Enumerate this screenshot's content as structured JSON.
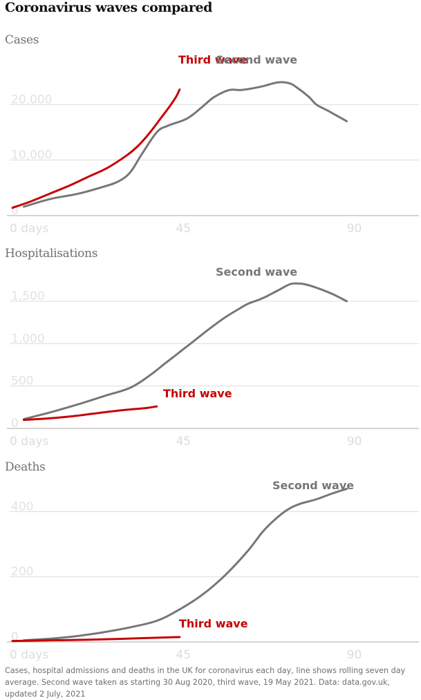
{
  "title": "Coronavirus waves compared",
  "footnote": "Cases, hospital admissions and deaths in the UK for coronavirus each day, line shows rolling seven day average. Second wave taken as starting 30 Aug 2020, third wave, 19 May 2021. Data: data.gov.uk, updated 2 July, 2021",
  "colors": {
    "second_wave": "#767676",
    "third_wave": "#c70000",
    "grid": "#dcdcdc",
    "axis": "#aaaaaa"
  },
  "chart_data": [
    {
      "type": "line",
      "title": "Cases",
      "xlabel": "",
      "ylabel": "",
      "xlim": [
        0,
        105
      ],
      "ylim": [
        0,
        27000
      ],
      "x_ticks": [
        {
          "v": 0,
          "label": "0 days"
        },
        {
          "v": 45,
          "label": "45"
        },
        {
          "v": 90,
          "label": "90"
        }
      ],
      "y_ticks": [
        {
          "v": 0,
          "label": "0"
        },
        {
          "v": 10000,
          "label": "10,000"
        },
        {
          "v": 20000,
          "label": "20,000"
        }
      ],
      "grid": true,
      "series": [
        {
          "name": "Second wave",
          "color": "#767676",
          "x": [
            3,
            10,
            17,
            24,
            28,
            31,
            34,
            38,
            41,
            46,
            50,
            53,
            57,
            60,
            63,
            66,
            70,
            73,
            75,
            78,
            80,
            83,
            88
          ],
          "y": [
            1600,
            3000,
            3900,
            5200,
            6200,
            7800,
            11000,
            15000,
            16200,
            17500,
            19600,
            21300,
            22600,
            22600,
            22900,
            23300,
            24000,
            23800,
            23000,
            21400,
            20000,
            18900,
            17000
          ]
        },
        {
          "name": "Third wave",
          "color": "#c70000",
          "x": [
            0,
            5,
            10,
            15,
            20,
            25,
            30,
            33,
            36,
            39,
            41,
            43,
            44
          ],
          "y": [
            1400,
            2600,
            4000,
            5400,
            7000,
            8600,
            10800,
            12500,
            14800,
            17500,
            19300,
            21300,
            22700
          ]
        }
      ]
    },
    {
      "type": "line",
      "title": "Hospitalisations",
      "xlabel": "",
      "ylabel": "",
      "xlim": [
        0,
        105
      ],
      "ylim": [
        0,
        1850
      ],
      "x_ticks": [
        {
          "v": 0,
          "label": "0 days"
        },
        {
          "v": 45,
          "label": "45"
        },
        {
          "v": 90,
          "label": "90"
        }
      ],
      "y_ticks": [
        {
          "v": 0,
          "label": "0"
        },
        {
          "v": 500,
          "label": "500"
        },
        {
          "v": 1000,
          "label": "1,000"
        },
        {
          "v": 1500,
          "label": "1,500"
        }
      ],
      "grid": true,
      "series": [
        {
          "name": "Second wave",
          "color": "#767676",
          "x": [
            3,
            10,
            17,
            24,
            31,
            36,
            40,
            44,
            48,
            52,
            56,
            60,
            62,
            65,
            67,
            70,
            73,
            75,
            77,
            80,
            84,
            88
          ],
          "y": [
            110,
            190,
            280,
            380,
            480,
            620,
            760,
            900,
            1040,
            1180,
            1310,
            1420,
            1470,
            1520,
            1560,
            1630,
            1700,
            1710,
            1700,
            1660,
            1590,
            1500
          ]
        },
        {
          "name": "Third wave",
          "color": "#c70000",
          "x": [
            3,
            10,
            17,
            24,
            30,
            35,
            38
          ],
          "y": [
            100,
            120,
            150,
            190,
            220,
            240,
            260
          ]
        }
      ]
    },
    {
      "type": "line",
      "title": "Deaths",
      "xlabel": "",
      "ylabel": "",
      "xlim": [
        0,
        105
      ],
      "ylim": [
        0,
        490
      ],
      "x_ticks": [
        {
          "v": 0,
          "label": "0 days"
        },
        {
          "v": 45,
          "label": "45"
        },
        {
          "v": 90,
          "label": "90"
        }
      ],
      "y_ticks": [
        {
          "v": 0,
          "label": "0"
        },
        {
          "v": 200,
          "label": "200"
        },
        {
          "v": 400,
          "label": "400"
        }
      ],
      "grid": true,
      "series": [
        {
          "name": "Second wave",
          "color": "#767676",
          "x": [
            3,
            10,
            17,
            24,
            31,
            38,
            44,
            50,
            56,
            62,
            66,
            70,
            73,
            76,
            80,
            84,
            88
          ],
          "y": [
            5,
            10,
            18,
            30,
            45,
            65,
            100,
            145,
            205,
            280,
            340,
            385,
            410,
            425,
            438,
            455,
            470
          ]
        },
        {
          "name": "Third wave",
          "color": "#c70000",
          "x": [
            0,
            10,
            20,
            30,
            38,
            44
          ],
          "y": [
            3,
            5,
            7,
            10,
            13,
            15
          ]
        }
      ]
    }
  ]
}
